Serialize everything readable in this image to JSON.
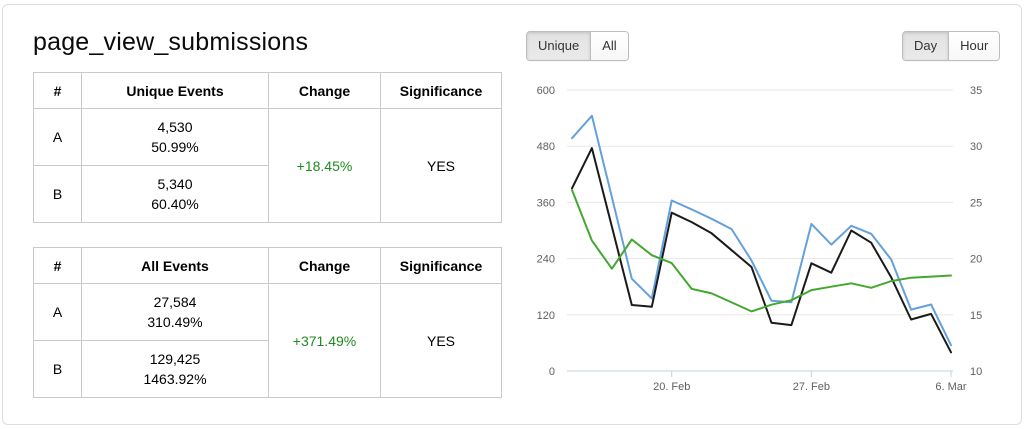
{
  "title": "page_view_submissions",
  "colors": {
    "positive_change": "#1f8b1f",
    "series_blue": "#64a1dc",
    "series_black": "#1a1a1a",
    "series_green": "#43a82e",
    "axis_line": "#c0d0e0",
    "gridline": "#e7e7e7",
    "axis_label": "#606060"
  },
  "tables": [
    {
      "headers": [
        "#",
        "Unique Events",
        "Change",
        "Significance"
      ],
      "rows": [
        {
          "label": "A",
          "count": "4,530",
          "percent": "50.99%"
        },
        {
          "label": "B",
          "count": "5,340",
          "percent": "60.40%"
        }
      ],
      "change": "+18.45%",
      "significance": "YES"
    },
    {
      "headers": [
        "#",
        "All Events",
        "Change",
        "Significance"
      ],
      "rows": [
        {
          "label": "A",
          "count": "27,584",
          "percent": "310.49%"
        },
        {
          "label": "B",
          "count": "129,425",
          "percent": "1463.92%"
        }
      ],
      "change": "+371.49%",
      "significance": "YES"
    }
  ],
  "chart_controls": {
    "metric_toggle": [
      {
        "label": "Unique",
        "active": true
      },
      {
        "label": "All",
        "active": false
      }
    ],
    "granularity_toggle": [
      {
        "label": "Day",
        "active": true
      },
      {
        "label": "Hour",
        "active": false
      }
    ]
  },
  "chart_data": {
    "type": "line",
    "x": [
      "15. Feb",
      "16. Feb",
      "17. Feb",
      "18. Feb",
      "19. Feb",
      "20. Feb",
      "21. Feb",
      "22. Feb",
      "23. Feb",
      "24. Feb",
      "25. Feb",
      "26. Feb",
      "27. Feb",
      "28. Feb",
      "1. Mar",
      "2. Mar",
      "3. Mar",
      "4. Mar",
      "5. Mar",
      "6. Mar"
    ],
    "series": [
      {
        "name": "blue",
        "axis": "left",
        "color": "#64a1dc",
        "values": [
          497,
          545,
          371,
          197,
          155,
          364,
          345,
          325,
          303,
          236,
          150,
          147,
          314,
          270,
          310,
          293,
          238,
          131,
          142,
          55
        ]
      },
      {
        "name": "black",
        "axis": "left",
        "color": "#1a1a1a",
        "values": [
          390,
          476,
          308,
          141,
          137,
          338,
          318,
          294,
          258,
          222,
          103,
          98,
          230,
          210,
          300,
          274,
          200,
          110,
          122,
          40
        ]
      },
      {
        "name": "green",
        "axis": "right",
        "color": "#43a82e",
        "values": [
          26.1,
          21.6,
          19.1,
          21.7,
          20.3,
          19.6,
          17.3,
          16.9,
          16.1,
          15.3,
          15.9,
          16.3,
          17.2,
          17.5,
          17.8,
          17.4,
          18.0,
          18.3,
          18.4,
          18.5
        ]
      }
    ],
    "left_axis": {
      "min": 0,
      "max": 600,
      "ticks": [
        0,
        120,
        240,
        360,
        480,
        600
      ]
    },
    "right_axis": {
      "min": 10,
      "max": 35,
      "ticks": [
        10,
        15,
        20,
        25,
        30,
        35
      ]
    },
    "x_tick_labels": [
      "20. Feb",
      "27. Feb",
      "6. Mar"
    ],
    "x_tick_indices": [
      5,
      12,
      19
    ],
    "grid": true,
    "legend": "none"
  }
}
